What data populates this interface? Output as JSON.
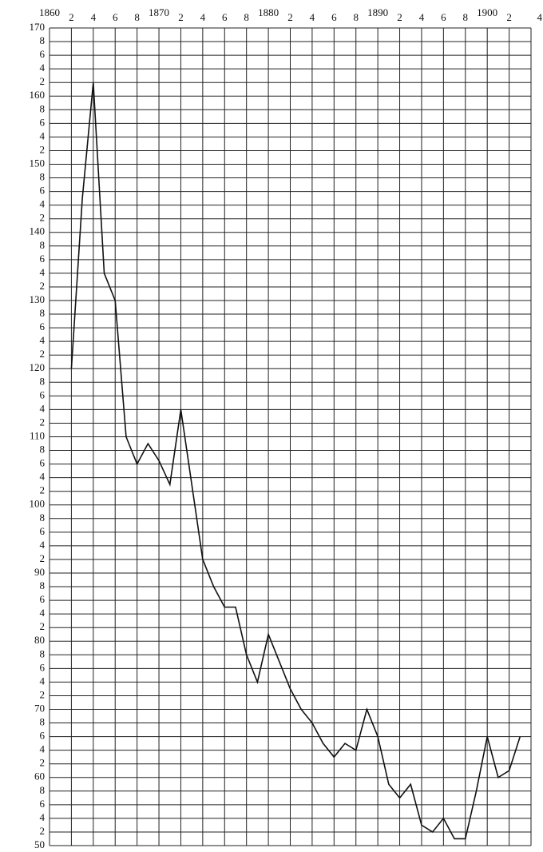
{
  "chart_data": {
    "type": "line",
    "x": [
      1862,
      1863,
      1864,
      1865,
      1866,
      1867,
      1868,
      1869,
      1870,
      1871,
      1872,
      1873,
      1874,
      1875,
      1876,
      1877,
      1878,
      1879,
      1880,
      1881,
      1882,
      1883,
      1884,
      1885,
      1886,
      1887,
      1888,
      1889,
      1890,
      1891,
      1892,
      1893,
      1894,
      1895,
      1896,
      1897,
      1898,
      1899,
      1900,
      1901,
      1902,
      1903
    ],
    "series": [
      {
        "color": "#111",
        "values": [
          120,
          145,
          162,
          134,
          130,
          110,
          106,
          109,
          106.5,
          103,
          114,
          103,
          92,
          88,
          85,
          85,
          78,
          74,
          81,
          77,
          73,
          70,
          68,
          65,
          63,
          65,
          64,
          70,
          66,
          59,
          57,
          59,
          53,
          52,
          54,
          51,
          51,
          58,
          66,
          60,
          61,
          66
        ]
      }
    ],
    "xlim": [
      1860,
      1904
    ],
    "xticks": [
      1860,
      {
        "value": 1862,
        "label": "2"
      },
      {
        "value": 1864,
        "label": "4"
      },
      {
        "value": 1866,
        "label": "6"
      },
      {
        "value": 1868,
        "label": "8"
      },
      1870,
      {
        "value": 1872,
        "label": "2"
      },
      {
        "value": 1874,
        "label": "4"
      },
      {
        "value": 1876,
        "label": "6"
      },
      {
        "value": 1878,
        "label": "8"
      },
      1880,
      {
        "value": 1882,
        "label": "2"
      },
      {
        "value": 1884,
        "label": "4"
      },
      {
        "value": 1886,
        "label": "6"
      },
      {
        "value": 1888,
        "label": "8"
      },
      1890,
      {
        "value": 1892,
        "label": "2"
      },
      {
        "value": 1894,
        "label": "4"
      },
      {
        "value": 1896,
        "label": "6"
      },
      {
        "value": 1898,
        "label": "8"
      },
      1900,
      {
        "value": 1902,
        "label": "2"
      },
      {
        "value": 1904,
        "label": "4"
      }
    ],
    "ylim": [
      50,
      170
    ],
    "yticks": [
      50,
      {
        "value": 52,
        "label": "2"
      },
      {
        "value": 54,
        "label": "4"
      },
      {
        "value": 56,
        "label": "6"
      },
      {
        "value": 58,
        "label": "8"
      },
      60,
      {
        "value": 62,
        "label": "2"
      },
      {
        "value": 64,
        "label": "4"
      },
      {
        "value": 66,
        "label": "6"
      },
      {
        "value": 68,
        "label": "8"
      },
      70,
      {
        "value": 72,
        "label": "2"
      },
      {
        "value": 74,
        "label": "4"
      },
      {
        "value": 76,
        "label": "6"
      },
      {
        "value": 78,
        "label": "8"
      },
      80,
      {
        "value": 82,
        "label": "2"
      },
      {
        "value": 84,
        "label": "4"
      },
      {
        "value": 86,
        "label": "6"
      },
      {
        "value": 88,
        "label": "8"
      },
      90,
      {
        "value": 92,
        "label": "2"
      },
      {
        "value": 94,
        "label": "4"
      },
      {
        "value": 96,
        "label": "6"
      },
      {
        "value": 98,
        "label": "8"
      },
      100,
      {
        "value": 102,
        "label": "2"
      },
      {
        "value": 104,
        "label": "4"
      },
      {
        "value": 106,
        "label": "6"
      },
      {
        "value": 108,
        "label": "8"
      },
      110,
      {
        "value": 112,
        "label": "2"
      },
      {
        "value": 114,
        "label": "4"
      },
      {
        "value": 116,
        "label": "6"
      },
      {
        "value": 118,
        "label": "8"
      },
      120,
      {
        "value": 122,
        "label": "2"
      },
      {
        "value": 124,
        "label": "4"
      },
      {
        "value": 126,
        "label": "6"
      },
      {
        "value": 128,
        "label": "8"
      },
      130,
      {
        "value": 132,
        "label": "2"
      },
      {
        "value": 134,
        "label": "4"
      },
      {
        "value": 136,
        "label": "6"
      },
      {
        "value": 138,
        "label": "8"
      },
      140,
      {
        "value": 142,
        "label": "2"
      },
      {
        "value": 144,
        "label": "4"
      },
      {
        "value": 146,
        "label": "6"
      },
      {
        "value": 148,
        "label": "8"
      },
      150,
      {
        "value": 152,
        "label": "2"
      },
      {
        "value": 154,
        "label": "4"
      },
      {
        "value": 156,
        "label": "6"
      },
      {
        "value": 158,
        "label": "8"
      },
      160,
      {
        "value": 162,
        "label": "2"
      },
      {
        "value": 164,
        "label": "4"
      },
      {
        "value": 166,
        "label": "6"
      },
      {
        "value": 168,
        "label": "8"
      },
      170
    ],
    "grid": true
  }
}
